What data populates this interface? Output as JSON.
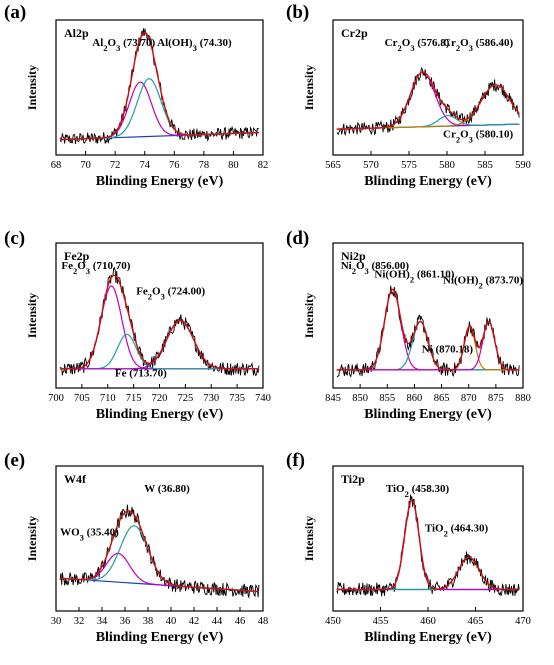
{
  "chart_data": [
    {
      "type": "line",
      "panel": "(a)",
      "title": "Al2p",
      "xlabel": "Blinding  Energy (eV)",
      "ylabel": "Intensity",
      "xlim": [
        68,
        82
      ],
      "xticks": [
        68,
        70,
        72,
        74,
        76,
        78,
        80,
        82
      ],
      "peaks": [
        {
          "label_parts": [
            "Al",
            "2",
            "O",
            "3",
            " (73.70)"
          ],
          "center": 73.7,
          "height": 0.52,
          "width": 0.75,
          "color": "#c000c0"
        },
        {
          "label_parts": [
            "Al(OH)",
            "3",
            " (74.30)"
          ],
          "center": 74.3,
          "height": 0.55,
          "width": 0.8,
          "color": "#20a0a0"
        }
      ],
      "baseline": [
        0.05,
        0.12
      ]
    },
    {
      "type": "line",
      "panel": "(b)",
      "title": "Cr2p",
      "xlabel": "Blinding  Energy (eV)",
      "ylabel": "Intensity",
      "xlim": [
        565,
        590
      ],
      "xticks": [
        565,
        570,
        575,
        580,
        585,
        590
      ],
      "peaks": [
        {
          "label_parts": [
            "Cr",
            "2",
            "O",
            "3",
            " (576.8)"
          ],
          "center": 576.8,
          "height": 0.52,
          "width": 1.6,
          "color": "#c000c0"
        },
        {
          "label_parts": [
            "Cr",
            "2",
            "O",
            "3",
            " (580.10)"
          ],
          "center": 580.1,
          "height": 0.1,
          "width": 1.2,
          "color": "#20a0a0"
        },
        {
          "label_parts": [
            "Cr",
            "2",
            "O",
            "3",
            " (586.40)"
          ],
          "center": 586.4,
          "height": 0.38,
          "width": 1.9,
          "color": "#c08000"
        }
      ],
      "baseline": [
        0.15,
        0.2
      ]
    },
    {
      "type": "line",
      "panel": "(c)",
      "title": "Fe2p",
      "xlabel": "Blinding  Energy (eV)",
      "ylabel": "Intensity",
      "xlim": [
        700,
        740
      ],
      "xticks": [
        700,
        705,
        710,
        715,
        720,
        725,
        730,
        735,
        740
      ],
      "peaks": [
        {
          "label_parts": [
            "Fe",
            "2",
            "O",
            "3",
            " (710.70)"
          ],
          "center": 710.7,
          "height": 0.72,
          "width": 2.0,
          "color": "#c000c0"
        },
        {
          "label_parts": [
            "Fe (713.70)"
          ],
          "center": 713.7,
          "height": 0.3,
          "width": 1.8,
          "color": "#20a0a0"
        },
        {
          "label_parts": [
            "Fe",
            "2",
            "O",
            "3",
            " (724.00)"
          ],
          "center": 724.0,
          "height": 0.42,
          "width": 2.6,
          "color": "#c000c0"
        }
      ],
      "baseline": [
        0.08,
        0.08
      ]
    },
    {
      "type": "line",
      "panel": "(d)",
      "title": "Ni2p",
      "xlabel": "Blinding  Energy (eV)",
      "ylabel": "Intensity",
      "xlim": [
        845,
        880
      ],
      "xticks": [
        845,
        850,
        855,
        860,
        865,
        870,
        875,
        880
      ],
      "peaks": [
        {
          "label_parts": [
            "Ni",
            "2",
            "O",
            "3",
            " (856.00)"
          ],
          "center": 856.0,
          "height": 0.7,
          "width": 1.5,
          "color": "#c000c0"
        },
        {
          "label_parts": [
            "Ni(OH)",
            "2",
            " (861.10)"
          ],
          "center": 861.1,
          "height": 0.42,
          "width": 1.4,
          "color": "#20a0a0"
        },
        {
          "label_parts": [
            "Ni (870.18)"
          ],
          "center": 870.18,
          "height": 0.38,
          "width": 1.0,
          "color": "#c08000"
        },
        {
          "label_parts": [
            "Ni(OH)",
            "2",
            " (873.70)"
          ],
          "center": 873.7,
          "height": 0.42,
          "width": 1.1,
          "color": "#c000c0"
        }
      ],
      "baseline": [
        0.07,
        0.07
      ]
    },
    {
      "type": "line",
      "panel": "(e)",
      "title": "W4f",
      "xlabel": "Blinding  Energy (eV)",
      "ylabel": "Intensity",
      "xlim": [
        30,
        48
      ],
      "xticks": [
        30,
        32,
        34,
        36,
        38,
        40,
        42,
        44,
        46,
        48
      ],
      "peaks": [
        {
          "label_parts": [
            "WO",
            "3",
            " (35.40)"
          ],
          "center": 35.4,
          "height": 0.25,
          "width": 1.0,
          "color": "#c000c0"
        },
        {
          "label_parts": [
            "W (36.80)"
          ],
          "center": 36.8,
          "height": 0.5,
          "width": 1.2,
          "color": "#20a0a0"
        }
      ],
      "baseline": [
        0.2,
        0.08
      ]
    },
    {
      "type": "line",
      "panel": "(f)",
      "title": "Ti2p",
      "xlabel": "Blinding  Energy (eV)",
      "ylabel": "Intensity",
      "xlim": [
        450,
        470
      ],
      "xticks": [
        450,
        455,
        460,
        465,
        470
      ],
      "peaks": [
        {
          "label_parts": [
            "TiO",
            "2",
            " (458.30)"
          ],
          "center": 458.3,
          "height": 0.78,
          "width": 0.75,
          "color": "#c000c0"
        },
        {
          "label_parts": [
            "TiO",
            "2",
            " (464.30)"
          ],
          "center": 464.3,
          "height": 0.28,
          "width": 1.1,
          "color": "#20a0a0"
        }
      ],
      "baseline": [
        0.1,
        0.1
      ]
    }
  ]
}
